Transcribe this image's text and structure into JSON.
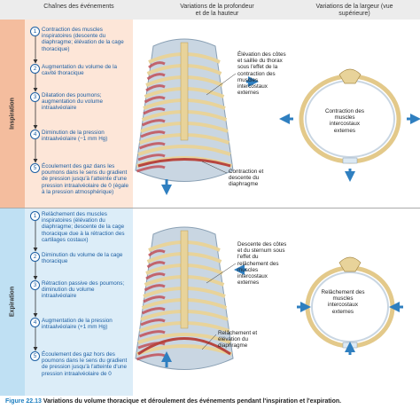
{
  "header": {
    "columns": [
      "Chaînes des événements",
      "Variations de la profondeur et de la hauteur",
      "Variations de la largeur (vue supérieure)"
    ]
  },
  "sections": [
    {
      "label": "Inspiration",
      "steps": [
        {
          "number": 1,
          "text": "Contraction des muscles inspiratoires (descente du diaphragme; élévation de la cage thoracique)"
        },
        {
          "number": 2,
          "text": "Augmentation du volume de la cavité thoracique"
        },
        {
          "number": 3,
          "text": "Dilatation des poumons; augmentation du volume intraalvéolaire"
        },
        {
          "number": 4,
          "text": "Diminution de la pression intraalvéolaire (−1 mm Hg)"
        },
        {
          "number": 5,
          "text": "Écoulement des gaz dans les poumons dans le sens du gradient de pression jusqu'à l'atteinte d'une pression intraalvéolaire de 0 (égale à la pression atmosphérique)"
        }
      ],
      "depth_notes": [
        "Élévation des côtes et saillie du thorax sous l'effet de la contraction des muscles intercostaux externes",
        "Contraction et descente du diaphragme"
      ],
      "width_note": "Contraction des muscles intercostaux externes"
    },
    {
      "label": "Expiration",
      "steps": [
        {
          "number": 1,
          "text": "Relâchement des muscles inspiratoires (élévation du diaphragme; descente de la cage thoracique due à la rétraction des cartilages costaux)"
        },
        {
          "number": 2,
          "text": "Diminution du volume de la cage thoracique"
        },
        {
          "number": 3,
          "text": "Rétraction passive des poumons; diminution du volume intraalvéolaire"
        },
        {
          "number": 4,
          "text": "Augmentation de la pression intraalvéolaire (+1 mm Hg)"
        },
        {
          "number": 5,
          "text": "Écoulement des gaz hors des poumons dans le sens du gradient de pression jusqu'à l'atteinte d'une pression intraalvéolaire de 0"
        }
      ],
      "depth_notes": [
        "Descente des côtes et du sternum sous l'effet du relâchement des muscles intercostaux externes",
        "Relâchement et élévation du diaphragme"
      ],
      "width_note": "Relâchement des muscles intercostaux externes"
    }
  ],
  "caption": {
    "figure": "Figure 22.13",
    "text": "Variations du volume thoracique et déroulement des événements pendant l'inspiration et l'expiration."
  }
}
